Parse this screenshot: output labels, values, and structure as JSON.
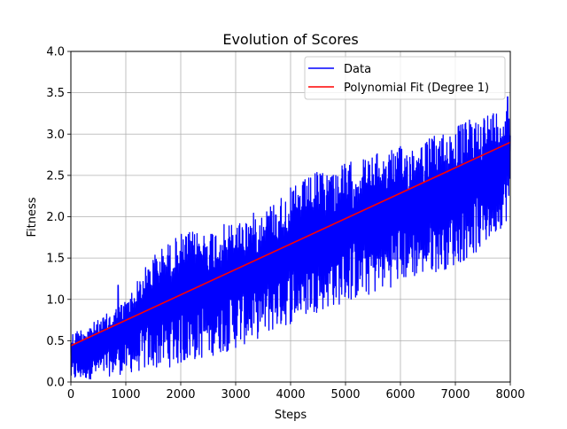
{
  "chart_data": {
    "type": "line",
    "title": "Evolution of Scores",
    "xlabel": "Steps",
    "ylabel": "Fitness",
    "xlim": [
      0,
      8000
    ],
    "ylim": [
      0,
      4.0
    ],
    "xticks": [
      "0",
      "1000",
      "2000",
      "3000",
      "4000",
      "5000",
      "6000",
      "7000",
      "8000"
    ],
    "yticks": [
      "0.0",
      "0.5",
      "1.0",
      "1.5",
      "2.0",
      "2.5",
      "3.0",
      "3.5",
      "4.0"
    ],
    "grid": true,
    "legend_position": "top-right",
    "series": [
      {
        "name": "Data",
        "color": "#0000ff",
        "style": "noisy band",
        "x": [
          0,
          500,
          1000,
          1500,
          2000,
          2500,
          3000,
          3500,
          4000,
          4500,
          5000,
          5500,
          6000,
          6500,
          7000,
          7500,
          8000
        ],
        "upper": [
          0.6,
          0.75,
          1.0,
          1.55,
          1.8,
          1.85,
          1.95,
          2.1,
          2.35,
          2.55,
          2.65,
          2.75,
          2.85,
          2.95,
          3.1,
          3.25,
          3.35
        ],
        "lower": [
          0.0,
          0.05,
          0.1,
          0.15,
          0.2,
          0.3,
          0.4,
          0.55,
          0.7,
          0.85,
          0.95,
          1.05,
          1.2,
          1.3,
          1.4,
          1.6,
          2.0
        ],
        "peaks": [
          [
            860,
            1.17
          ],
          [
            7950,
            3.45
          ]
        ]
      },
      {
        "name": "Polynomial Fit (Degree 1)",
        "color": "#ff0000",
        "x": [
          0,
          8000
        ],
        "y": [
          0.44,
          2.9
        ]
      }
    ]
  }
}
